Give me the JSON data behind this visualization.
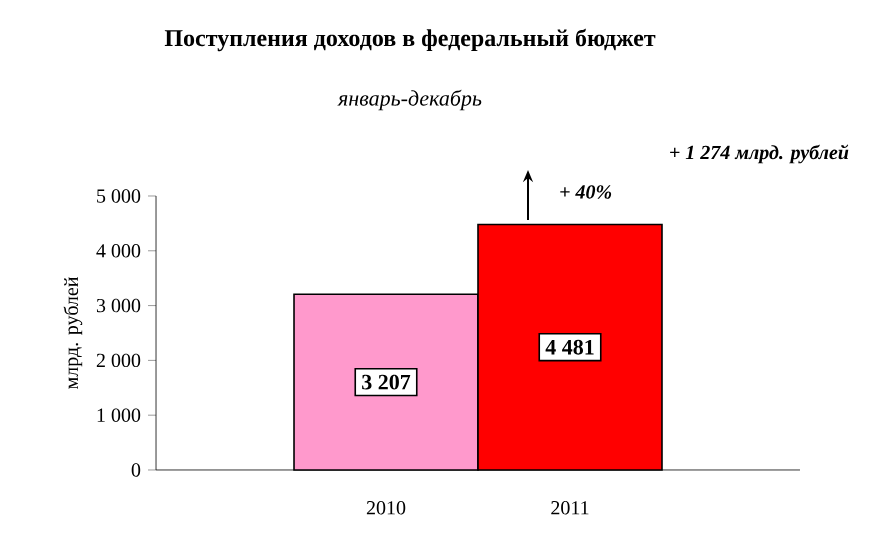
{
  "chart_data": {
    "type": "bar",
    "title": "Поступления доходов в федеральный бюджет",
    "subtitle": "январь-декабрь",
    "ylabel": "млрд. рублей",
    "categories": [
      "2010",
      "2011"
    ],
    "values": [
      3207,
      4481
    ],
    "colors": [
      "#ff99cc",
      "#ff0000"
    ],
    "value_labels": [
      "3 207",
      "4 481"
    ],
    "ylim": [
      0,
      5000
    ],
    "yticks": [
      {
        "value": 0,
        "label": "0"
      },
      {
        "value": 1000,
        "label": "1 000"
      },
      {
        "value": 2000,
        "label": "2 000"
      },
      {
        "value": 3000,
        "label": "3 000"
      },
      {
        "value": 4000,
        "label": "4 000"
      },
      {
        "value": 5000,
        "label": "5 000"
      }
    ],
    "annotations": [
      "+ 1 274 млрд. рублей",
      "+ 40%"
    ]
  }
}
